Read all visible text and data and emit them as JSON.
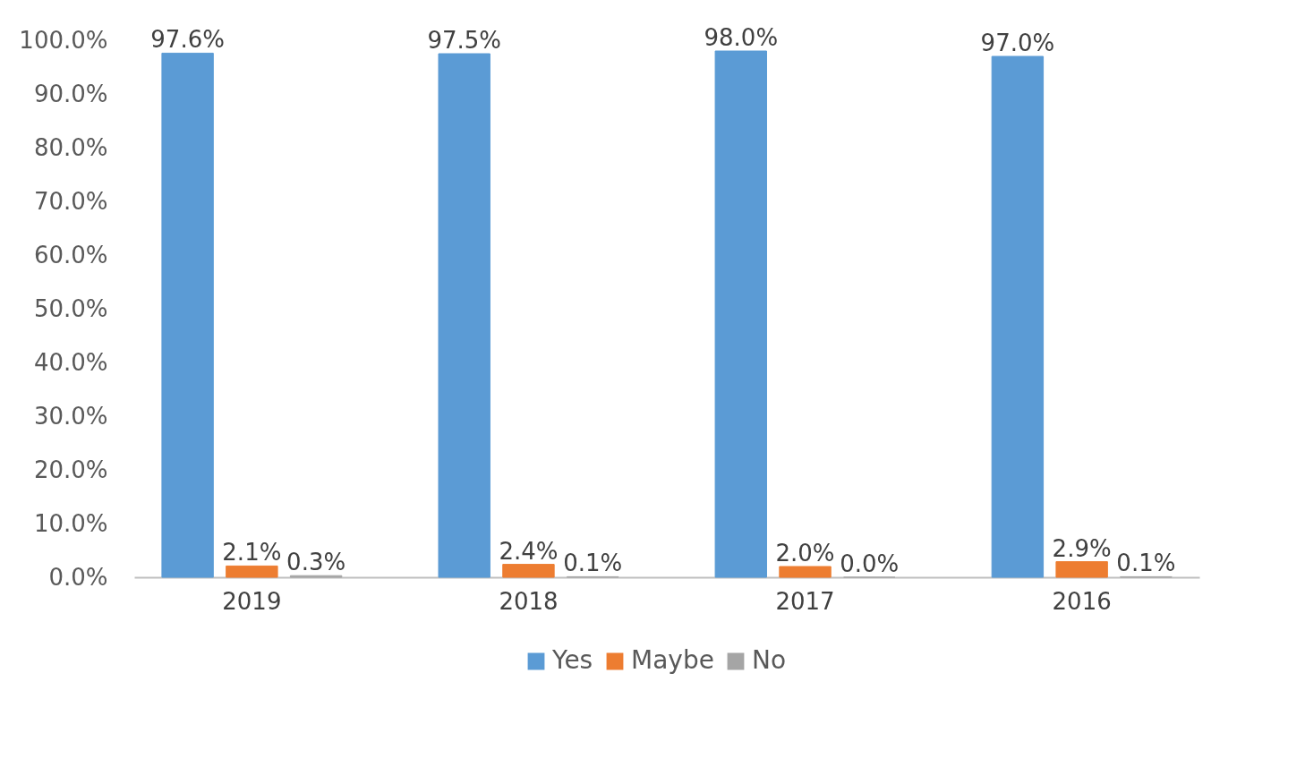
{
  "chart_data": {
    "type": "bar",
    "categories": [
      "2019",
      "2018",
      "2017",
      "2016"
    ],
    "series": [
      {
        "name": "Yes",
        "color": "#5b9bd5",
        "values": [
          97.6,
          97.5,
          98.0,
          97.0
        ],
        "value_labels": [
          "97.6%",
          "97.5%",
          "98.0%",
          "97.0%"
        ]
      },
      {
        "name": "Maybe",
        "color": "#ed7d31",
        "values": [
          2.1,
          2.4,
          2.0,
          2.9
        ],
        "value_labels": [
          "2.1%",
          "2.4%",
          "2.0%",
          "2.9%"
        ]
      },
      {
        "name": "No",
        "color": "#a5a5a5",
        "values": [
          0.3,
          0.1,
          0.0,
          0.1
        ],
        "value_labels": [
          "0.3%",
          "0.1%",
          "0.0%",
          "0.1%"
        ]
      }
    ],
    "ylim": [
      0,
      100
    ],
    "yticks": [
      {
        "value": 0,
        "label": "0.0%"
      },
      {
        "value": 10,
        "label": "10.0%"
      },
      {
        "value": 20,
        "label": "20.0%"
      },
      {
        "value": 30,
        "label": "30.0%"
      },
      {
        "value": 40,
        "label": "40.0%"
      },
      {
        "value": 50,
        "label": "50.0%"
      },
      {
        "value": 60,
        "label": "60.0%"
      },
      {
        "value": 70,
        "label": "70.0%"
      },
      {
        "value": 80,
        "label": "80.0%"
      },
      {
        "value": 90,
        "label": "90.0%"
      },
      {
        "value": 100,
        "label": "100.0%"
      }
    ],
    "legend": "bottom"
  }
}
